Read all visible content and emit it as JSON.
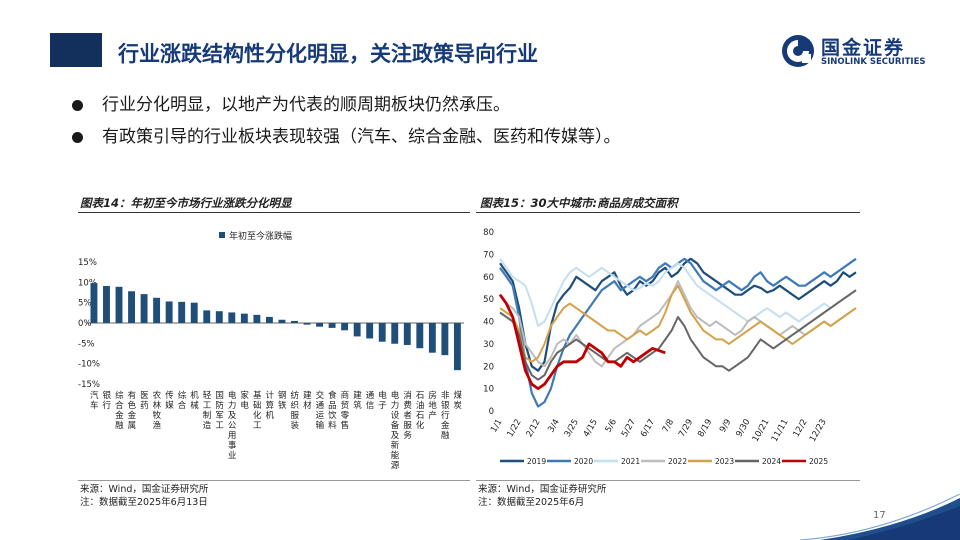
{
  "header": {
    "title": "行业涨跌结构性分化明显，关注政策导向行业",
    "logo_cn": "国金证券",
    "logo_en": "SINOLINK SECURITIES"
  },
  "bullets": [
    "行业分化明显，以地产为代表的顺周期板块仍然承压。",
    "有政策引导的行业板块表现较强（汽车、综合金融、医药和传媒等）。"
  ],
  "left_chart": {
    "title": "图表14：年初至今市场行业涨跌分化明显",
    "source": "来源：Wind，国金证券研究所",
    "note": "注：数据截至2025年6月13日"
  },
  "right_chart": {
    "title": "图表15：30大中城市:商品房成交面积",
    "source": "来源：Wind，国金证券研究所",
    "note": "注：数据截至2025年6月"
  },
  "page_number": "17",
  "colors": {
    "brand": "#163a78",
    "bar": "#1f4e79"
  },
  "chart_data": [
    {
      "type": "bar",
      "title": "",
      "legend": "年初至今涨跌幅",
      "legend_position": "top",
      "ylim": [
        -15,
        15
      ],
      "yticks": [
        "15%",
        "10%",
        "5%",
        "0%",
        "-5%",
        "-10%",
        "-15%"
      ],
      "ytick_values": [
        15,
        10,
        5,
        0,
        -5,
        -10,
        -15
      ],
      "categories": [
        "汽车",
        "银行",
        "综合金融",
        "有色金属",
        "医药",
        "农林牧渔",
        "传媒",
        "综合",
        "机械",
        "轻工制造",
        "国防军工",
        "电力及公用事业",
        "家电",
        "基础化工",
        "计算机",
        "钢铁",
        "纺织服装",
        "建材",
        "交通运输",
        "食品饮料",
        "商贸零售",
        "建筑",
        "通信",
        "电子",
        "电力设备及新能源",
        "消费者服务",
        "石油石化",
        "房地产",
        "非银行金融",
        "煤炭"
      ],
      "values": [
        9.8,
        9.1,
        8.9,
        7.8,
        7.1,
        6.2,
        5.3,
        5.2,
        5.0,
        3.1,
        2.9,
        2.6,
        2.3,
        2.0,
        1.5,
        0.8,
        0.5,
        -0.4,
        -0.9,
        -1.2,
        -1.8,
        -3.3,
        -3.8,
        -4.6,
        -5.1,
        -5.4,
        -6.2,
        -7.3,
        -7.9,
        -11.6
      ]
    },
    {
      "type": "line",
      "title": "",
      "ylim": [
        0,
        80
      ],
      "yticks": [
        "0",
        "10",
        "20",
        "30",
        "40",
        "50",
        "60",
        "70",
        "80"
      ],
      "ytick_values": [
        0,
        10,
        20,
        30,
        40,
        50,
        60,
        70,
        80
      ],
      "xticks": [
        "1/1",
        "1/22",
        "2/12",
        "3/4",
        "3/25",
        "4/15",
        "5/6",
        "5/27",
        "6/17",
        "7/8",
        "7/29",
        "8/19",
        "9/9",
        "9/30",
        "10/21",
        "11/11",
        "12/2",
        "12/23"
      ],
      "x_unit": "week",
      "legend_position": "bottom",
      "series": [
        {
          "name": "2019",
          "color": "#1f4e79",
          "width": 2.2,
          "values": [
            66,
            62,
            58,
            46,
            30,
            20,
            18,
            22,
            38,
            48,
            52,
            55,
            60,
            58,
            56,
            54,
            58,
            60,
            62,
            56,
            52,
            54,
            58,
            56,
            58,
            62,
            64,
            60,
            62,
            66,
            68,
            66,
            62,
            60,
            58,
            56,
            54,
            52,
            52,
            54,
            56,
            55,
            53,
            54,
            56,
            54,
            52,
            50,
            52,
            54,
            56,
            58,
            56,
            58,
            62,
            60,
            62
          ]
        },
        {
          "name": "2020",
          "color": "#3f7ab8",
          "width": 2.2,
          "values": [
            64,
            60,
            56,
            42,
            22,
            8,
            2,
            4,
            10,
            20,
            28,
            34,
            38,
            42,
            46,
            50,
            54,
            56,
            58,
            54,
            56,
            58,
            60,
            58,
            60,
            64,
            66,
            64,
            66,
            68,
            66,
            62,
            58,
            56,
            54,
            56,
            58,
            56,
            54,
            56,
            60,
            62,
            58,
            56,
            58,
            60,
            58,
            56,
            56,
            58,
            60,
            62,
            60,
            62,
            64,
            66,
            68
          ]
        },
        {
          "name": "2021",
          "color": "#c5dff0",
          "width": 2.0,
          "values": [
            68,
            64,
            60,
            58,
            56,
            48,
            38,
            40,
            46,
            52,
            58,
            62,
            64,
            62,
            60,
            62,
            64,
            62,
            60,
            58,
            56,
            54,
            55,
            57,
            56,
            58,
            62,
            64,
            66,
            64,
            60,
            56,
            54,
            52,
            50,
            48,
            46,
            44,
            42,
            40,
            42,
            44,
            46,
            44,
            42,
            44,
            42,
            40,
            42,
            44,
            46,
            48,
            46,
            48,
            50,
            52,
            54
          ]
        },
        {
          "name": "2022",
          "color": "#bdbdbd",
          "width": 2.0,
          "values": [
            52,
            48,
            46,
            42,
            30,
            26,
            22,
            20,
            24,
            30,
            32,
            30,
            34,
            30,
            26,
            22,
            20,
            24,
            28,
            30,
            32,
            34,
            38,
            40,
            42,
            44,
            48,
            52,
            58,
            52,
            46,
            42,
            40,
            38,
            40,
            38,
            36,
            34,
            36,
            40,
            42,
            40,
            38,
            36,
            34,
            36,
            38,
            36,
            34,
            36,
            38,
            40,
            38,
            40,
            42,
            44,
            46
          ]
        },
        {
          "name": "2023",
          "color": "#d4a24a",
          "width": 2.0,
          "values": [
            46,
            44,
            42,
            36,
            24,
            22,
            24,
            30,
            38,
            42,
            46,
            48,
            46,
            44,
            42,
            40,
            38,
            36,
            36,
            34,
            32,
            34,
            36,
            34,
            36,
            38,
            44,
            52,
            56,
            50,
            44,
            40,
            36,
            34,
            32,
            32,
            30,
            32,
            34,
            36,
            38,
            40,
            38,
            36,
            34,
            32,
            30,
            32,
            34,
            36,
            38,
            40,
            38,
            40,
            42,
            44,
            46
          ]
        },
        {
          "name": "2024",
          "color": "#666666",
          "width": 2.0,
          "values": [
            44,
            42,
            40,
            34,
            22,
            16,
            14,
            16,
            22,
            26,
            28,
            30,
            32,
            30,
            28,
            26,
            24,
            22,
            22,
            24,
            26,
            24,
            22,
            24,
            26,
            28,
            32,
            36,
            42,
            38,
            32,
            28,
            24,
            22,
            20,
            20,
            18,
            20,
            22,
            24,
            28,
            32,
            30,
            28,
            30,
            32,
            34,
            36,
            38,
            40,
            42,
            44,
            46,
            48,
            50,
            52,
            54
          ]
        },
        {
          "name": "2025",
          "color": "#c00000",
          "width": 2.8,
          "values": [
            52,
            48,
            42,
            30,
            18,
            12,
            10,
            12,
            16,
            20,
            22,
            22,
            22,
            24,
            30,
            28,
            26,
            22,
            22,
            20,
            24,
            22,
            24,
            26,
            28,
            27,
            26
          ]
        }
      ]
    }
  ]
}
